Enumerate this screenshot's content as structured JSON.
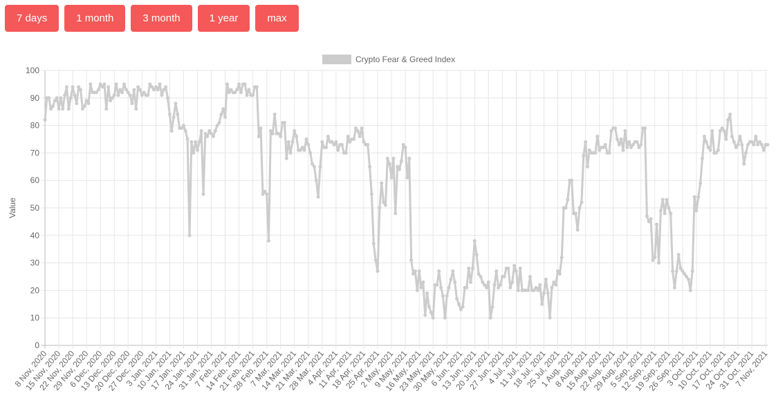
{
  "buttons": [
    "7 days",
    "1 month",
    "3 month",
    "1 year",
    "max"
  ],
  "chart_data": {
    "type": "line",
    "ylabel": "Value",
    "ylim": [
      0,
      100
    ],
    "yticks": [
      0,
      10,
      20,
      30,
      40,
      50,
      60,
      70,
      80,
      90,
      100
    ],
    "grid": true,
    "legend": "top",
    "categories": [
      "8 Nov, 2020",
      null,
      null,
      null,
      null,
      null,
      null,
      "15 Nov, 2020",
      null,
      null,
      null,
      null,
      null,
      null,
      "22 Nov, 2020",
      null,
      null,
      null,
      null,
      null,
      null,
      "29 Nov, 2020",
      null,
      null,
      null,
      null,
      null,
      null,
      "6 Dec, 2020",
      null,
      null,
      null,
      null,
      null,
      null,
      "13 Dec, 2020",
      null,
      null,
      null,
      null,
      null,
      null,
      "20 Dec, 2020",
      null,
      null,
      null,
      null,
      null,
      null,
      "27 Dec, 2020",
      null,
      null,
      null,
      null,
      null,
      null,
      "3 Jan, 2021",
      null,
      null,
      null,
      null,
      null,
      null,
      "10 Jan, 2021",
      null,
      null,
      null,
      null,
      null,
      null,
      "17 Jan, 2021",
      null,
      null,
      null,
      null,
      null,
      null,
      "24 Jan, 2021",
      null,
      null,
      null,
      null,
      null,
      null,
      "31 Jan, 2021",
      null,
      null,
      null,
      null,
      null,
      null,
      "7 Feb, 2021",
      null,
      null,
      null,
      null,
      null,
      null,
      "14 Feb, 2021",
      null,
      null,
      null,
      null,
      null,
      null,
      "21 Feb, 2021",
      null,
      null,
      null,
      null,
      null,
      null,
      "28 Feb, 2021",
      null,
      null,
      null,
      null,
      null,
      null,
      "7 Mar, 2021",
      null,
      null,
      null,
      null,
      null,
      null,
      "14 Mar, 2021",
      null,
      null,
      null,
      null,
      null,
      null,
      "21 Mar, 2021",
      null,
      null,
      null,
      null,
      null,
      null,
      "28 Mar, 2021",
      null,
      null,
      null,
      null,
      null,
      null,
      "4 Apr, 2021",
      null,
      null,
      null,
      null,
      null,
      null,
      "11 Apr, 2021",
      null,
      null,
      null,
      null,
      null,
      null,
      "18 Apr, 2021",
      null,
      null,
      null,
      null,
      null,
      null,
      "25 Apr, 2021",
      null,
      null,
      null,
      null,
      null,
      null,
      "2 May, 2021",
      null,
      null,
      null,
      null,
      null,
      null,
      "9 May, 2021",
      null,
      null,
      null,
      null,
      null,
      null,
      "16 May, 2021",
      null,
      null,
      null,
      null,
      null,
      null,
      "23 May, 2021",
      null,
      null,
      null,
      null,
      null,
      null,
      "30 May, 2021",
      null,
      null,
      null,
      null,
      null,
      null,
      "6 Jun, 2021",
      null,
      null,
      null,
      null,
      null,
      null,
      "13 Jun, 2021",
      null,
      null,
      null,
      null,
      null,
      null,
      "20 Jun, 2021",
      null,
      null,
      null,
      null,
      null,
      null,
      "27 Jun, 2021",
      null,
      null,
      null,
      null,
      null,
      null,
      "4 Jul, 2021",
      null,
      null,
      null,
      null,
      null,
      null,
      "11 Jul, 2021",
      null,
      null,
      null,
      null,
      null,
      null,
      "18 Jul, 2021",
      null,
      null,
      null,
      null,
      null,
      null,
      "25 Jul, 2021",
      null,
      null,
      null,
      null,
      null,
      null,
      "1 Aug, 2021",
      null,
      null,
      null,
      null,
      null,
      null,
      "8 Aug, 2021",
      null,
      null,
      null,
      null,
      null,
      null,
      "15 Aug, 2021",
      null,
      null,
      null,
      null,
      null,
      null,
      "22 Aug, 2021",
      null,
      null,
      null,
      null,
      null,
      null,
      "29 Aug, 2021",
      null,
      null,
      null,
      null,
      null,
      null,
      "5 Sep, 2021",
      null,
      null,
      null,
      null,
      null,
      null,
      "12 Sep, 2021",
      null,
      null,
      null,
      null,
      null,
      null,
      "19 Sep, 2021",
      null,
      null,
      null,
      null,
      null,
      null,
      "26 Sep, 2021",
      null,
      null,
      null,
      null,
      null,
      null,
      "3 Oct, 2021",
      null,
      null,
      null,
      null,
      null,
      null,
      "10 Oct, 2021",
      null,
      null,
      null,
      null,
      null,
      null,
      "17 Oct, 2021",
      null,
      null,
      null,
      null,
      null,
      null,
      "24 Oct, 2021",
      null,
      null,
      null,
      null,
      null,
      null,
      "31 Oct, 2021",
      null,
      null,
      null,
      null,
      null,
      null,
      "7 Nov, 2021",
      null
    ],
    "series": [
      {
        "name": "Crypto Fear & Greed Index",
        "color": "#cccccc",
        "values": [
          82,
          90,
          90,
          86,
          87,
          89,
          90,
          86,
          90,
          86,
          91,
          94,
          86,
          90,
          94,
          91,
          88,
          94,
          93,
          86,
          87,
          89,
          88,
          95,
          92,
          92,
          92,
          93,
          95,
          94,
          95,
          86,
          94,
          89,
          90,
          91,
          95,
          91,
          93,
          92,
          95,
          93,
          92,
          91,
          88,
          93,
          86,
          94,
          93,
          91,
          92,
          91,
          91,
          95,
          94,
          93,
          94,
          93,
          95,
          91,
          93,
          94,
          90,
          84,
          78,
          83,
          88,
          84,
          79,
          79,
          80,
          78,
          75,
          40,
          74,
          70,
          74,
          71,
          74,
          78,
          55,
          77,
          76,
          78,
          77,
          76,
          78,
          80,
          81,
          84,
          86,
          83,
          95,
          92,
          93,
          92,
          92,
          93,
          95,
          92,
          95,
          95,
          91,
          93,
          91,
          91,
          94,
          94,
          76,
          79,
          55,
          56,
          55,
          38,
          78,
          77,
          84,
          77,
          77,
          76,
          81,
          81,
          68,
          74,
          70,
          74,
          78,
          76,
          71,
          71,
          72,
          71,
          75,
          73,
          70,
          66,
          65,
          60,
          54,
          65,
          74,
          72,
          72,
          76,
          74,
          74,
          73,
          74,
          71,
          73,
          73,
          70,
          70,
          76,
          74,
          75,
          75,
          79,
          78,
          76,
          79,
          74,
          73,
          73,
          65,
          55,
          37,
          31,
          27,
          50,
          59,
          52,
          51,
          68,
          66,
          61,
          68,
          48,
          65,
          64,
          67,
          73,
          72,
          61,
          68,
          31,
          26,
          27,
          20,
          27,
          21,
          23,
          11,
          19,
          14,
          12,
          10,
          22,
          22,
          27,
          21,
          18,
          10,
          18,
          21,
          24,
          27,
          23,
          17,
          15,
          13,
          14,
          21,
          21,
          28,
          23,
          28,
          38,
          33,
          26,
          25,
          23,
          22,
          21,
          23,
          10,
          14,
          22,
          27,
          21,
          22,
          25,
          25,
          28,
          28,
          21,
          23,
          29,
          27,
          20,
          28,
          20,
          20,
          20,
          20,
          25,
          20,
          20,
          21,
          20,
          22,
          15,
          19,
          24,
          19,
          10,
          21,
          23,
          22,
          27,
          26,
          32,
          50,
          50,
          53,
          60,
          60,
          48,
          48,
          42,
          50,
          52,
          69,
          74,
          65,
          71,
          70,
          70,
          70,
          76,
          71,
          72,
          72,
          73,
          70,
          70,
          78,
          79,
          79,
          75,
          73,
          75,
          71,
          78,
          72,
          74,
          72,
          73,
          74,
          74,
          72,
          73,
          79,
          79,
          47,
          45,
          46,
          31,
          32,
          44,
          30,
          49,
          53,
          48,
          53,
          50,
          48,
          27,
          21,
          27,
          33,
          28,
          27,
          26,
          25,
          24,
          20,
          27,
          54,
          49,
          54,
          59,
          68,
          76,
          74,
          72,
          71,
          78,
          70,
          70,
          71,
          78,
          79,
          78,
          75,
          82,
          84,
          76,
          74,
          72,
          73,
          76,
          73,
          66,
          70,
          73,
          74,
          74,
          73,
          76,
          73,
          74,
          73,
          71,
          73,
          73
        ]
      }
    ]
  }
}
